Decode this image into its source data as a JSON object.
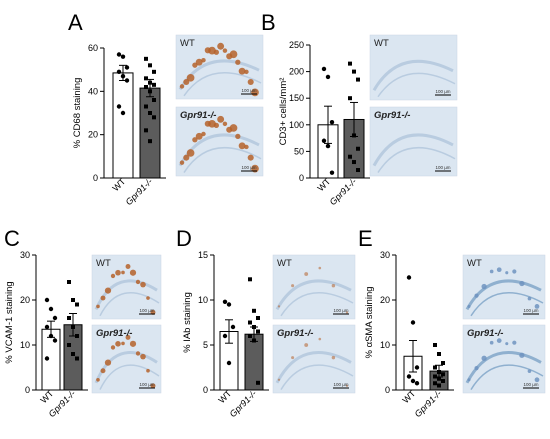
{
  "colors": {
    "wt_bar": "#ffffff",
    "ko_bar": "#5c5c5c",
    "axis": "#000000",
    "stain_brown": "#b5612a",
    "tissue_bg": "#dbe6f1",
    "tissue_blue": "#a9c3dd"
  },
  "chart_data": [
    {
      "panel_label": "A",
      "type": "bar",
      "categories": [
        "WT",
        "Gpr91-/-"
      ],
      "ylabel": "% CD68 staining",
      "ylim": [
        0,
        60
      ],
      "yticks": [
        0,
        20,
        40,
        60
      ],
      "series": [
        {
          "values": [
            48.5,
            41.5
          ],
          "sem": [
            3.5,
            4.0
          ]
        }
      ],
      "points": [
        [
          57,
          56,
          51,
          49,
          47,
          45,
          33,
          30
        ],
        [
          55,
          52,
          49,
          46,
          44,
          43,
          42,
          40,
          36,
          33,
          30,
          28,
          22,
          17
        ]
      ],
      "images": [
        {
          "label": "WT",
          "scale_bar": "100 µm"
        },
        {
          "label": "Gpr91-/-",
          "scale_bar": "100 µm"
        }
      ]
    },
    {
      "panel_label": "B",
      "type": "bar",
      "categories": [
        "WT",
        "Gpr91-/-"
      ],
      "ylabel": "CD3+ cells/mm²",
      "ylim": [
        0,
        250
      ],
      "yticks": [
        0,
        50,
        100,
        150,
        200,
        250
      ],
      "series": [
        {
          "values": [
            100,
            110
          ],
          "sem": [
            35,
            32
          ]
        }
      ],
      "points": [
        [
          205,
          190,
          105,
          70,
          60,
          10
        ],
        [
          215,
          200,
          185,
          150,
          80,
          55,
          40,
          30,
          15
        ]
      ],
      "images": [
        {
          "label": "WT",
          "scale_bar": "100 µm"
        },
        {
          "label": "Gpr91-/-",
          "scale_bar": "100 µm"
        }
      ]
    },
    {
      "panel_label": "C",
      "type": "bar",
      "categories": [
        "WT",
        "Gpr91-/-"
      ],
      "ylabel": "% VCAM-1 staining",
      "ylim": [
        0,
        30
      ],
      "yticks": [
        0,
        10,
        20,
        30
      ],
      "series": [
        {
          "values": [
            13.5,
            14.5
          ],
          "sem": [
            1.8,
            2.5
          ]
        }
      ],
      "points": [
        [
          20,
          18,
          16,
          14,
          12,
          11,
          7
        ],
        [
          24,
          20,
          19,
          16,
          14,
          12,
          10,
          8,
          7
        ]
      ],
      "images": [
        {
          "label": "WT",
          "scale_bar": "100 µm"
        },
        {
          "label": "Gpr91-/-",
          "scale_bar": "100 µm"
        }
      ]
    },
    {
      "panel_label": "D",
      "type": "bar",
      "categories": [
        "WT",
        "Gpr91-/-"
      ],
      "ylabel": "% IAb staining",
      "ylim": [
        0,
        15
      ],
      "yticks": [
        0,
        5,
        10,
        15
      ],
      "series": [
        {
          "values": [
            6.5,
            6.2
          ],
          "sem": [
            1.3,
            0.8
          ]
        }
      ],
      "points": [
        [
          9.8,
          9.5,
          7,
          6,
          3
        ],
        [
          12.3,
          8.8,
          8,
          7.5,
          7,
          6.5,
          6,
          5.5,
          0.8
        ]
      ],
      "images": [
        {
          "label": "WT",
          "scale_bar": "100 µm"
        },
        {
          "label": "Gpr91-/-",
          "scale_bar": "100 µm"
        }
      ]
    },
    {
      "panel_label": "E",
      "type": "bar",
      "categories": [
        "WT",
        "Gpr91-/-"
      ],
      "ylabel": "% αSMA staining",
      "ylim": [
        0,
        30
      ],
      "yticks": [
        0,
        10,
        20,
        30
      ],
      "series": [
        {
          "values": [
            7.5,
            4.2
          ],
          "sem": [
            3.5,
            1.3
          ]
        }
      ],
      "points": [
        [
          25,
          15,
          5,
          3,
          2,
          1.5
        ],
        [
          10,
          8,
          6,
          5,
          4,
          3.5,
          3,
          2.5,
          2,
          1.5,
          1
        ]
      ],
      "images": [
        {
          "label": "WT",
          "scale_bar": "100 µm"
        },
        {
          "label": "Gpr91-/-",
          "scale_bar": "100 µm"
        }
      ]
    }
  ]
}
